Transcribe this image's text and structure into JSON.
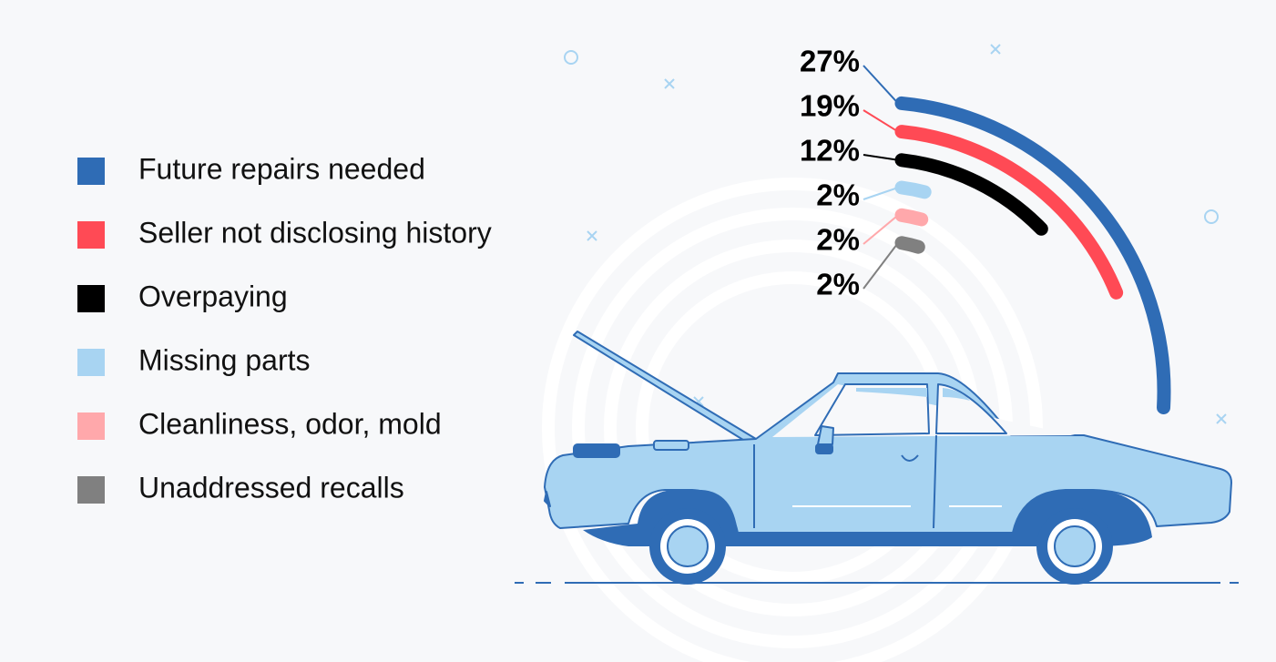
{
  "chart_data": {
    "type": "radial-bar",
    "categories": [
      "Future repairs needed",
      "Seller not disclosing history",
      "Overpaying",
      "Missing parts",
      "Cleanliness, odor, mold",
      "Unaddressed recalls"
    ],
    "values": [
      27,
      19,
      12,
      2,
      2,
      2
    ],
    "value_labels": [
      "27%",
      "19%",
      "12%",
      "2%",
      "2%",
      "2%"
    ],
    "colors": [
      "#2f6cb5",
      "#ff4a55",
      "#000000",
      "#a8d4f2",
      "#ffa8ab",
      "#808080"
    ]
  }
}
